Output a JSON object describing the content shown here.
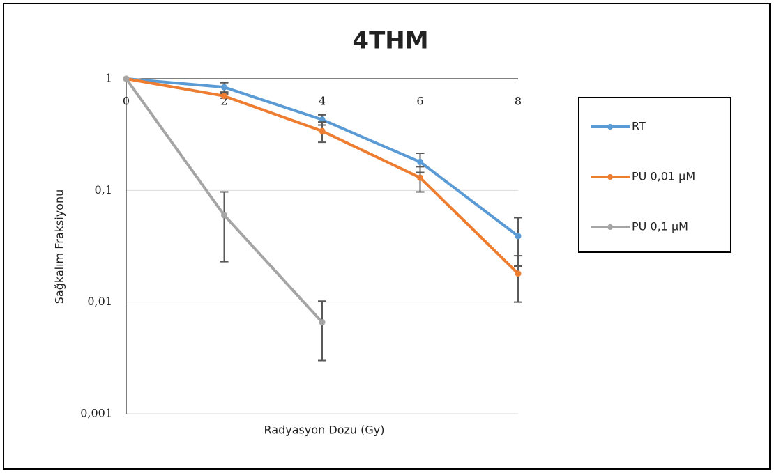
{
  "chart_data": {
    "type": "line",
    "title": "4THM",
    "xlabel": "Radyasyon Dozu (Gy)",
    "ylabel": "Sağkalım Fraksiyonu",
    "x": [
      0,
      2,
      4,
      6,
      8
    ],
    "series": [
      {
        "name": "RT",
        "color": "#5b9bd5",
        "values": [
          1,
          0.84,
          0.43,
          0.18,
          0.039
        ],
        "errors": [
          0,
          0.08,
          0.045,
          0.035,
          0.018
        ]
      },
      {
        "name": "PU 0,01 µM",
        "color": "#ed7d31",
        "values": [
          1,
          0.7,
          0.34,
          0.13,
          0.018
        ],
        "errors": [
          0,
          0.03,
          0.07,
          0.033,
          0.008
        ]
      },
      {
        "name": "PU 0,1 µM",
        "color": "#a5a5a5",
        "values": [
          1,
          0.06,
          0.0066,
          null,
          null
        ],
        "errors": [
          0,
          0.037,
          0.0036,
          null,
          null
        ]
      }
    ],
    "xlim": [
      0,
      8
    ],
    "xticks": [
      0,
      2,
      4,
      6,
      8
    ],
    "ylim": [
      0.001,
      1
    ],
    "log_y": true,
    "yticks": [
      1,
      {
        "value": 0.1,
        "label": "0,1"
      },
      {
        "value": 0.01,
        "label": "0,01"
      },
      {
        "value": 0.001,
        "label": "0,001"
      }
    ],
    "grid": true,
    "legend": "right",
    "error_color": "#595959"
  }
}
